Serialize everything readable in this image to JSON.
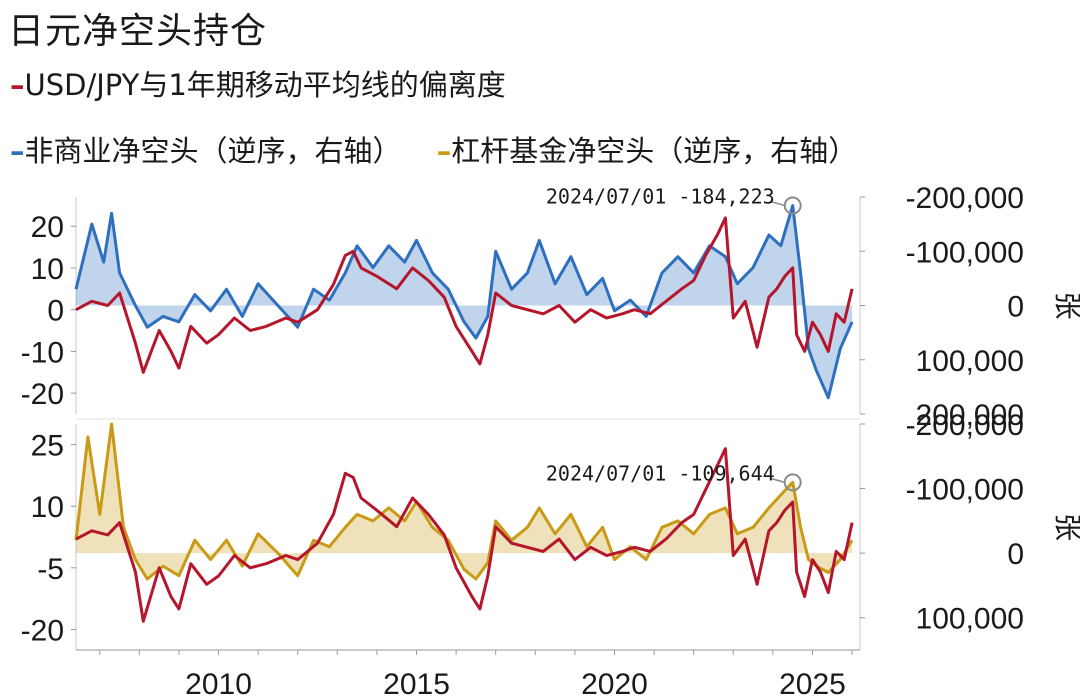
{
  "title": "日元净空头持仓",
  "legend": [
    {
      "label": "USD/JPY与1年期移动平均线的偏离度",
      "color": "#b5162b"
    },
    {
      "label": "非商业净空头（逆序，右轴）",
      "color": "#2e6fbf"
    },
    {
      "label": "杠杆基金净空头（逆序，右轴）",
      "color": "#c99a16"
    }
  ],
  "right_axis_unit": "张",
  "chart_data": [
    {
      "type": "line",
      "x_ticks": [
        2010,
        2015,
        2020,
        2025
      ],
      "x_range": [
        2006.4,
        2026.2
      ],
      "left_axis": {
        "range": [
          -25,
          27
        ],
        "ticks": [
          -20,
          -10,
          0,
          10,
          20
        ]
      },
      "right_axis": {
        "inverted": true,
        "range": [
          -200000,
          200000
        ],
        "ticks": [
          -200000,
          -100000,
          0,
          100000,
          200000
        ],
        "tick_labels": [
          "-200,000",
          "-100,000",
          "0",
          "100,000",
          "200,000"
        ],
        "unit": "张"
      },
      "annotation": {
        "text": "2024/07/01  -184,223",
        "x": 2024.5,
        "y": -184223
      },
      "series": [
        {
          "name": "USD/JPY与1年期移动平均线的偏离度",
          "axis": "left",
          "color": "#b5162b",
          "x": [
            2006.4,
            2006.8,
            2007.2,
            2007.5,
            2007.9,
            2008.1,
            2008.5,
            2008.8,
            2009.0,
            2009.3,
            2009.7,
            2010.0,
            2010.4,
            2010.8,
            2011.2,
            2011.7,
            2012.0,
            2012.5,
            2012.9,
            2013.2,
            2013.4,
            2013.6,
            2014.0,
            2014.5,
            2014.9,
            2015.3,
            2015.7,
            2016.0,
            2016.4,
            2016.6,
            2016.8,
            2017.0,
            2017.4,
            2017.8,
            2018.2,
            2018.6,
            2019.0,
            2019.4,
            2019.8,
            2020.2,
            2020.5,
            2020.9,
            2021.3,
            2021.7,
            2022.0,
            2022.3,
            2022.6,
            2022.8,
            2023.0,
            2023.3,
            2023.6,
            2023.9,
            2024.1,
            2024.3,
            2024.5,
            2024.6,
            2024.8,
            2025.0,
            2025.2,
            2025.4,
            2025.6,
            2025.8,
            2026.0
          ],
          "y": [
            0,
            2,
            1,
            4,
            -8,
            -15,
            -5,
            -10,
            -14,
            -4,
            -8,
            -6,
            -2,
            -5,
            -4,
            -2,
            -3,
            0,
            6,
            13,
            14,
            10,
            8,
            5,
            10,
            7,
            3,
            -4,
            -10,
            -13,
            -6,
            4,
            1,
            0,
            -1,
            1,
            -3,
            0,
            -2,
            -1,
            0,
            -1,
            2,
            5,
            7,
            13,
            18,
            22,
            -2,
            2,
            -9,
            3,
            5,
            8,
            10,
            -6,
            -10,
            -3,
            -6,
            -10,
            -1,
            -3,
            5
          ]
        },
        {
          "name": "非商业净空头（逆序，右轴）",
          "axis": "right",
          "color": "#2e6fbf",
          "fill": true,
          "x": [
            2006.4,
            2006.8,
            2007.1,
            2007.3,
            2007.5,
            2007.9,
            2008.2,
            2008.6,
            2009.0,
            2009.4,
            2009.8,
            2010.2,
            2010.6,
            2011.0,
            2011.5,
            2012.0,
            2012.4,
            2012.8,
            2013.2,
            2013.5,
            2013.9,
            2014.3,
            2014.7,
            2015.0,
            2015.4,
            2015.8,
            2016.2,
            2016.5,
            2016.8,
            2017.0,
            2017.4,
            2017.8,
            2018.1,
            2018.5,
            2018.9,
            2019.3,
            2019.7,
            2020.0,
            2020.4,
            2020.8,
            2021.2,
            2021.6,
            2022.0,
            2022.4,
            2022.8,
            2023.1,
            2023.5,
            2023.9,
            2024.2,
            2024.5,
            2024.7,
            2024.9,
            2025.1,
            2025.4,
            2025.7,
            2026.0
          ],
          "y": [
            -30000,
            -150000,
            -80000,
            -170000,
            -60000,
            0,
            40000,
            20000,
            30000,
            -20000,
            10000,
            -30000,
            20000,
            -40000,
            0,
            40000,
            -30000,
            -10000,
            -60000,
            -110000,
            -70000,
            -110000,
            -80000,
            -120000,
            -60000,
            -30000,
            30000,
            60000,
            20000,
            -100000,
            -30000,
            -60000,
            -120000,
            -40000,
            -90000,
            -20000,
            -50000,
            10000,
            -10000,
            20000,
            -60000,
            -90000,
            -60000,
            -110000,
            -90000,
            -40000,
            -70000,
            -130000,
            -110000,
            -184223,
            -60000,
            80000,
            120000,
            170000,
            80000,
            30000
          ]
        }
      ]
    },
    {
      "type": "line",
      "x_ticks": [
        2010,
        2015,
        2020,
        2025
      ],
      "x_range": [
        2006.4,
        2026.2
      ],
      "left_axis": {
        "range": [
          -25,
          30
        ],
        "ticks": [
          -20,
          -5,
          10,
          25
        ]
      },
      "right_axis": {
        "inverted": true,
        "range": [
          -200000,
          150000
        ],
        "ticks": [
          -200000,
          -100000,
          0,
          100000
        ],
        "tick_labels": [
          "-200,000",
          "-100,000",
          "0",
          "100,000"
        ],
        "unit": "张"
      },
      "annotation": {
        "text": "2024/07/01  -109,644",
        "x": 2024.5,
        "y": -109644
      },
      "series": [
        {
          "name": "USD/JPY与1年期移动平均线的偏离度",
          "axis": "left",
          "color": "#b5162b",
          "x": [
            2006.4,
            2006.8,
            2007.2,
            2007.5,
            2007.9,
            2008.1,
            2008.5,
            2008.8,
            2009.0,
            2009.3,
            2009.7,
            2010.0,
            2010.4,
            2010.8,
            2011.2,
            2011.7,
            2012.0,
            2012.5,
            2012.9,
            2013.2,
            2013.4,
            2013.6,
            2014.0,
            2014.5,
            2014.9,
            2015.3,
            2015.7,
            2016.0,
            2016.4,
            2016.6,
            2016.8,
            2017.0,
            2017.4,
            2017.8,
            2018.2,
            2018.6,
            2019.0,
            2019.4,
            2019.8,
            2020.2,
            2020.5,
            2020.9,
            2021.3,
            2021.7,
            2022.0,
            2022.3,
            2022.6,
            2022.8,
            2023.0,
            2023.3,
            2023.6,
            2023.9,
            2024.1,
            2024.3,
            2024.5,
            2024.6,
            2024.8,
            2025.0,
            2025.2,
            2025.4,
            2025.6,
            2025.8,
            2026.0
          ],
          "y": [
            2,
            4,
            3,
            6,
            -6,
            -18,
            -5,
            -12,
            -15,
            -4,
            -9,
            -7,
            -2,
            -5,
            -4,
            -2,
            -3,
            1,
            8,
            18,
            17,
            12,
            9,
            5,
            12,
            8,
            3,
            -5,
            -12,
            -15,
            -7,
            5,
            1,
            0,
            -1,
            2,
            -3,
            0,
            -2,
            -1,
            0,
            -1,
            2,
            6,
            8,
            14,
            20,
            24,
            -2,
            2,
            -9,
            4,
            6,
            9,
            11,
            -6,
            -12,
            -3,
            -6,
            -11,
            -1,
            -3,
            6
          ]
        },
        {
          "name": "杠杆基金净空头（逆序，右轴）",
          "axis": "right",
          "color": "#c99a16",
          "fill": true,
          "x": [
            2006.4,
            2006.7,
            2007.0,
            2007.3,
            2007.6,
            2007.9,
            2008.2,
            2008.6,
            2009.0,
            2009.4,
            2009.8,
            2010.2,
            2010.6,
            2011.0,
            2011.5,
            2012.0,
            2012.4,
            2012.8,
            2013.2,
            2013.5,
            2013.9,
            2014.3,
            2014.7,
            2015.0,
            2015.4,
            2015.8,
            2016.2,
            2016.5,
            2016.8,
            2017.0,
            2017.4,
            2017.8,
            2018.1,
            2018.5,
            2018.9,
            2019.3,
            2019.7,
            2020.0,
            2020.4,
            2020.8,
            2021.2,
            2021.6,
            2022.0,
            2022.4,
            2022.8,
            2023.1,
            2023.5,
            2023.9,
            2024.2,
            2024.5,
            2024.7,
            2024.9,
            2025.1,
            2025.4,
            2025.7,
            2026.0
          ],
          "y": [
            -20000,
            -180000,
            -60000,
            -200000,
            -40000,
            10000,
            40000,
            20000,
            35000,
            -20000,
            10000,
            -20000,
            20000,
            -30000,
            0,
            35000,
            -20000,
            -10000,
            -40000,
            -60000,
            -50000,
            -70000,
            -50000,
            -80000,
            -40000,
            -20000,
            25000,
            40000,
            15000,
            -50000,
            -20000,
            -40000,
            -70000,
            -30000,
            -60000,
            -10000,
            -40000,
            10000,
            -10000,
            10000,
            -40000,
            -50000,
            -30000,
            -60000,
            -70000,
            -30000,
            -40000,
            -70000,
            -90000,
            -109644,
            -40000,
            10000,
            20000,
            30000,
            10000,
            -20000
          ]
        }
      ]
    }
  ]
}
